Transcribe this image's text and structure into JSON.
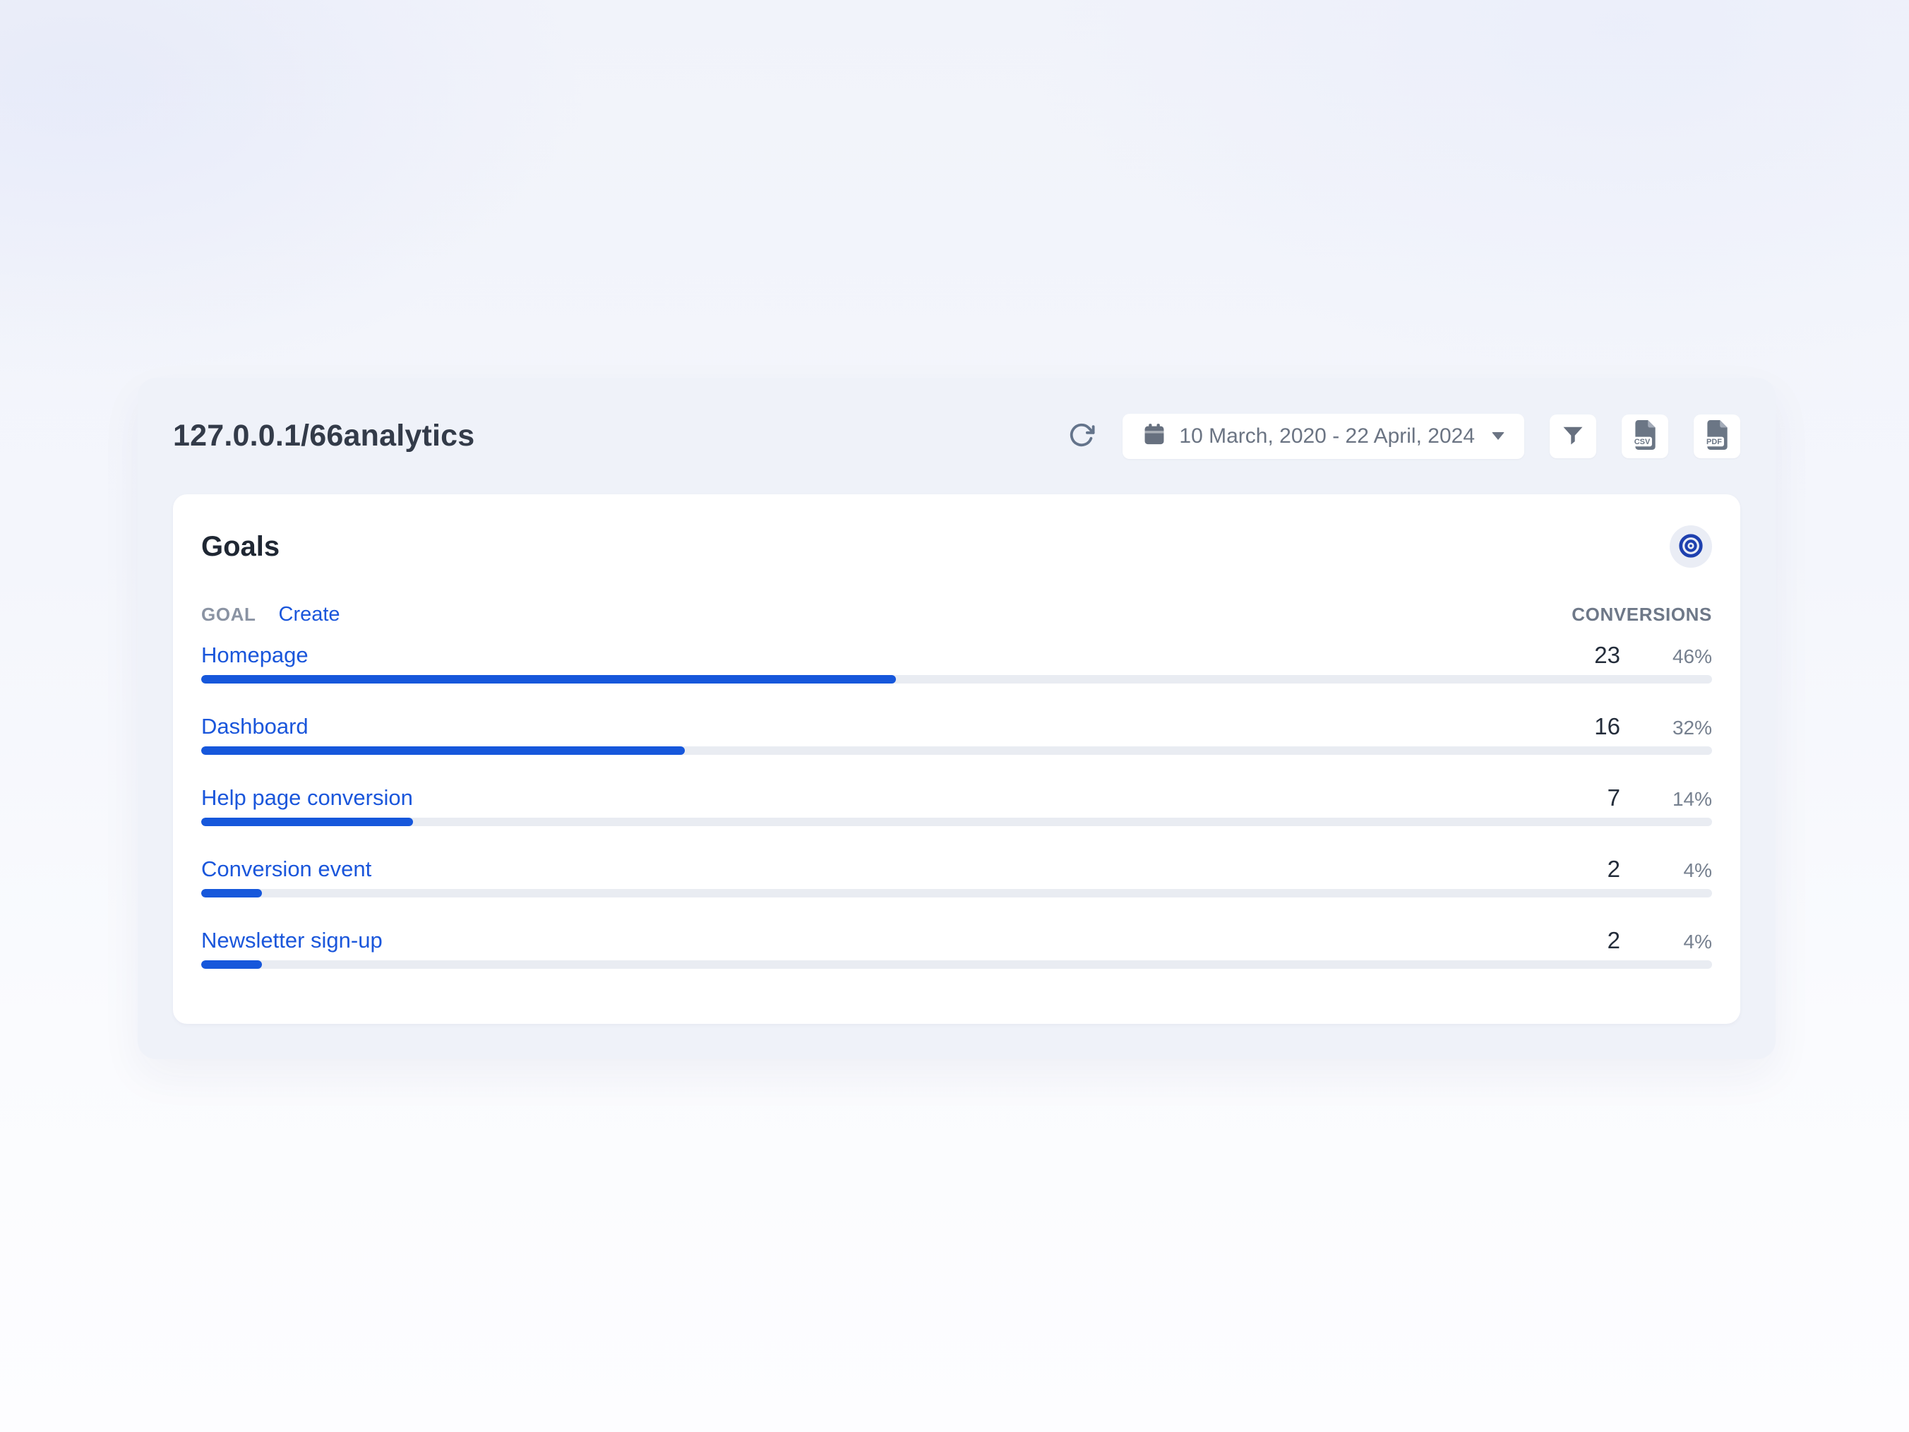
{
  "header": {
    "title": "127.0.0.1/66analytics",
    "date_range": "10 March, 2020 - 22 April, 2024",
    "export_csv_label": "CSV",
    "export_pdf_label": "PDF"
  },
  "goals": {
    "title": "Goals",
    "column_goal": "GOAL",
    "create_label": "Create",
    "column_conversions": "CONVERSIONS",
    "rows": [
      {
        "label": "Homepage",
        "conversions": "23",
        "percent_label": "46%",
        "percent": 46
      },
      {
        "label": "Dashboard",
        "conversions": "16",
        "percent_label": "32%",
        "percent": 32
      },
      {
        "label": "Help page conversion",
        "conversions": "7",
        "percent_label": "14%",
        "percent": 14
      },
      {
        "label": "Conversion event",
        "conversions": "2",
        "percent_label": "4%",
        "percent": 4
      },
      {
        "label": "Newsletter sign-up",
        "conversions": "2",
        "percent_label": "4%",
        "percent": 4
      }
    ]
  },
  "colors": {
    "accent_blue": "#1a56db",
    "bar_fill_blue": "#1657db",
    "bar_track_gray": "#e9ecf2",
    "target_icon_navy": "#1e40af",
    "icon_gray": "#67707f",
    "panel_bg": "#eff2f9",
    "card_bg": "#ffffff"
  }
}
